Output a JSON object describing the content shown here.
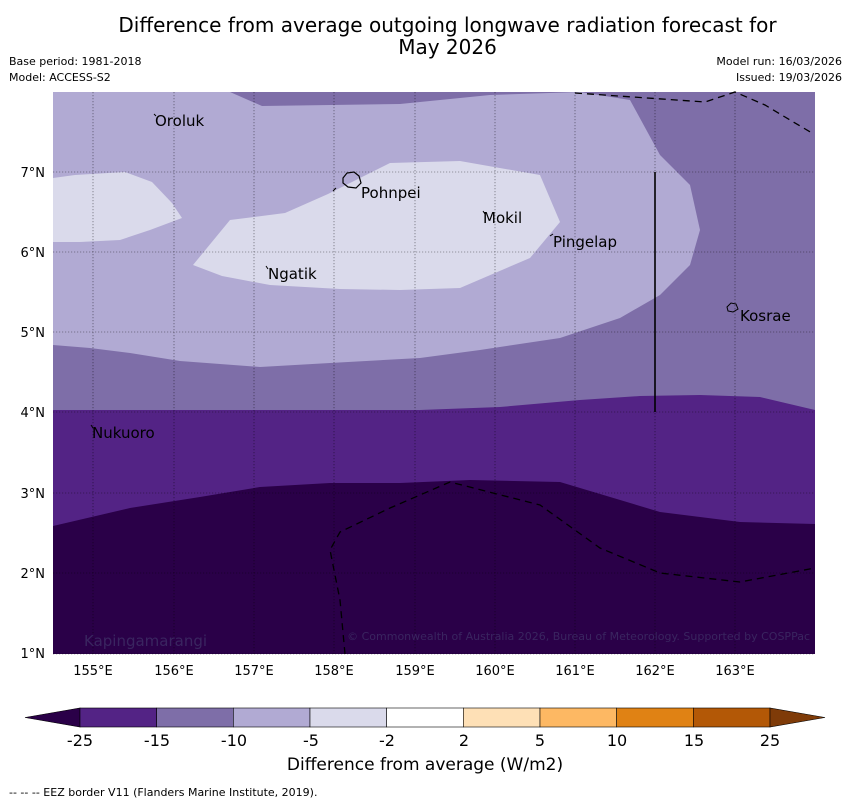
{
  "title_line1": "Difference from average outgoing longwave radiation forecast for",
  "title_line2": "May 2026",
  "base_period": "Base period: 1981-2018",
  "model": "Model: ACCESS-S2",
  "model_run": "Model run: 16/03/2026",
  "issued": "Issued: 19/03/2026",
  "lon_labels": [
    "155°E",
    "156°E",
    "157°E",
    "158°E",
    "159°E",
    "160°E",
    "161°E",
    "162°E",
    "163°E"
  ],
  "lat_labels": [
    "7°N",
    "6°N",
    "5°N",
    "4°N",
    "3°N",
    "2°N",
    "1°N"
  ],
  "places": [
    "Oroluk",
    "Pohnpei",
    "Mokil",
    "Pingelap",
    "Ngatik",
    "Kosrae",
    "Nukuoro",
    "Kapingamarangi"
  ],
  "copyright": "© Commonwealth of Australia 2026, Bureau of Meteorology. Supported by COSPPac",
  "colorbar": {
    "ticks": [
      "-25",
      "-15",
      "-10",
      "-5",
      "-2",
      "2",
      "5",
      "10",
      "15",
      "25"
    ],
    "colors": [
      "#2a0048",
      "#532385",
      "#7e6ea8",
      "#b1aad3",
      "#dadaeb",
      "#ffffff",
      "#fee0b6",
      "#fdb863",
      "#e08214",
      "#b35806",
      "#7f3b08"
    ],
    "label": "Difference from average (W/m2)"
  },
  "eez_note": "--  --  -- EEZ border V11 (Flanders Marine Institute, 2019)."
}
